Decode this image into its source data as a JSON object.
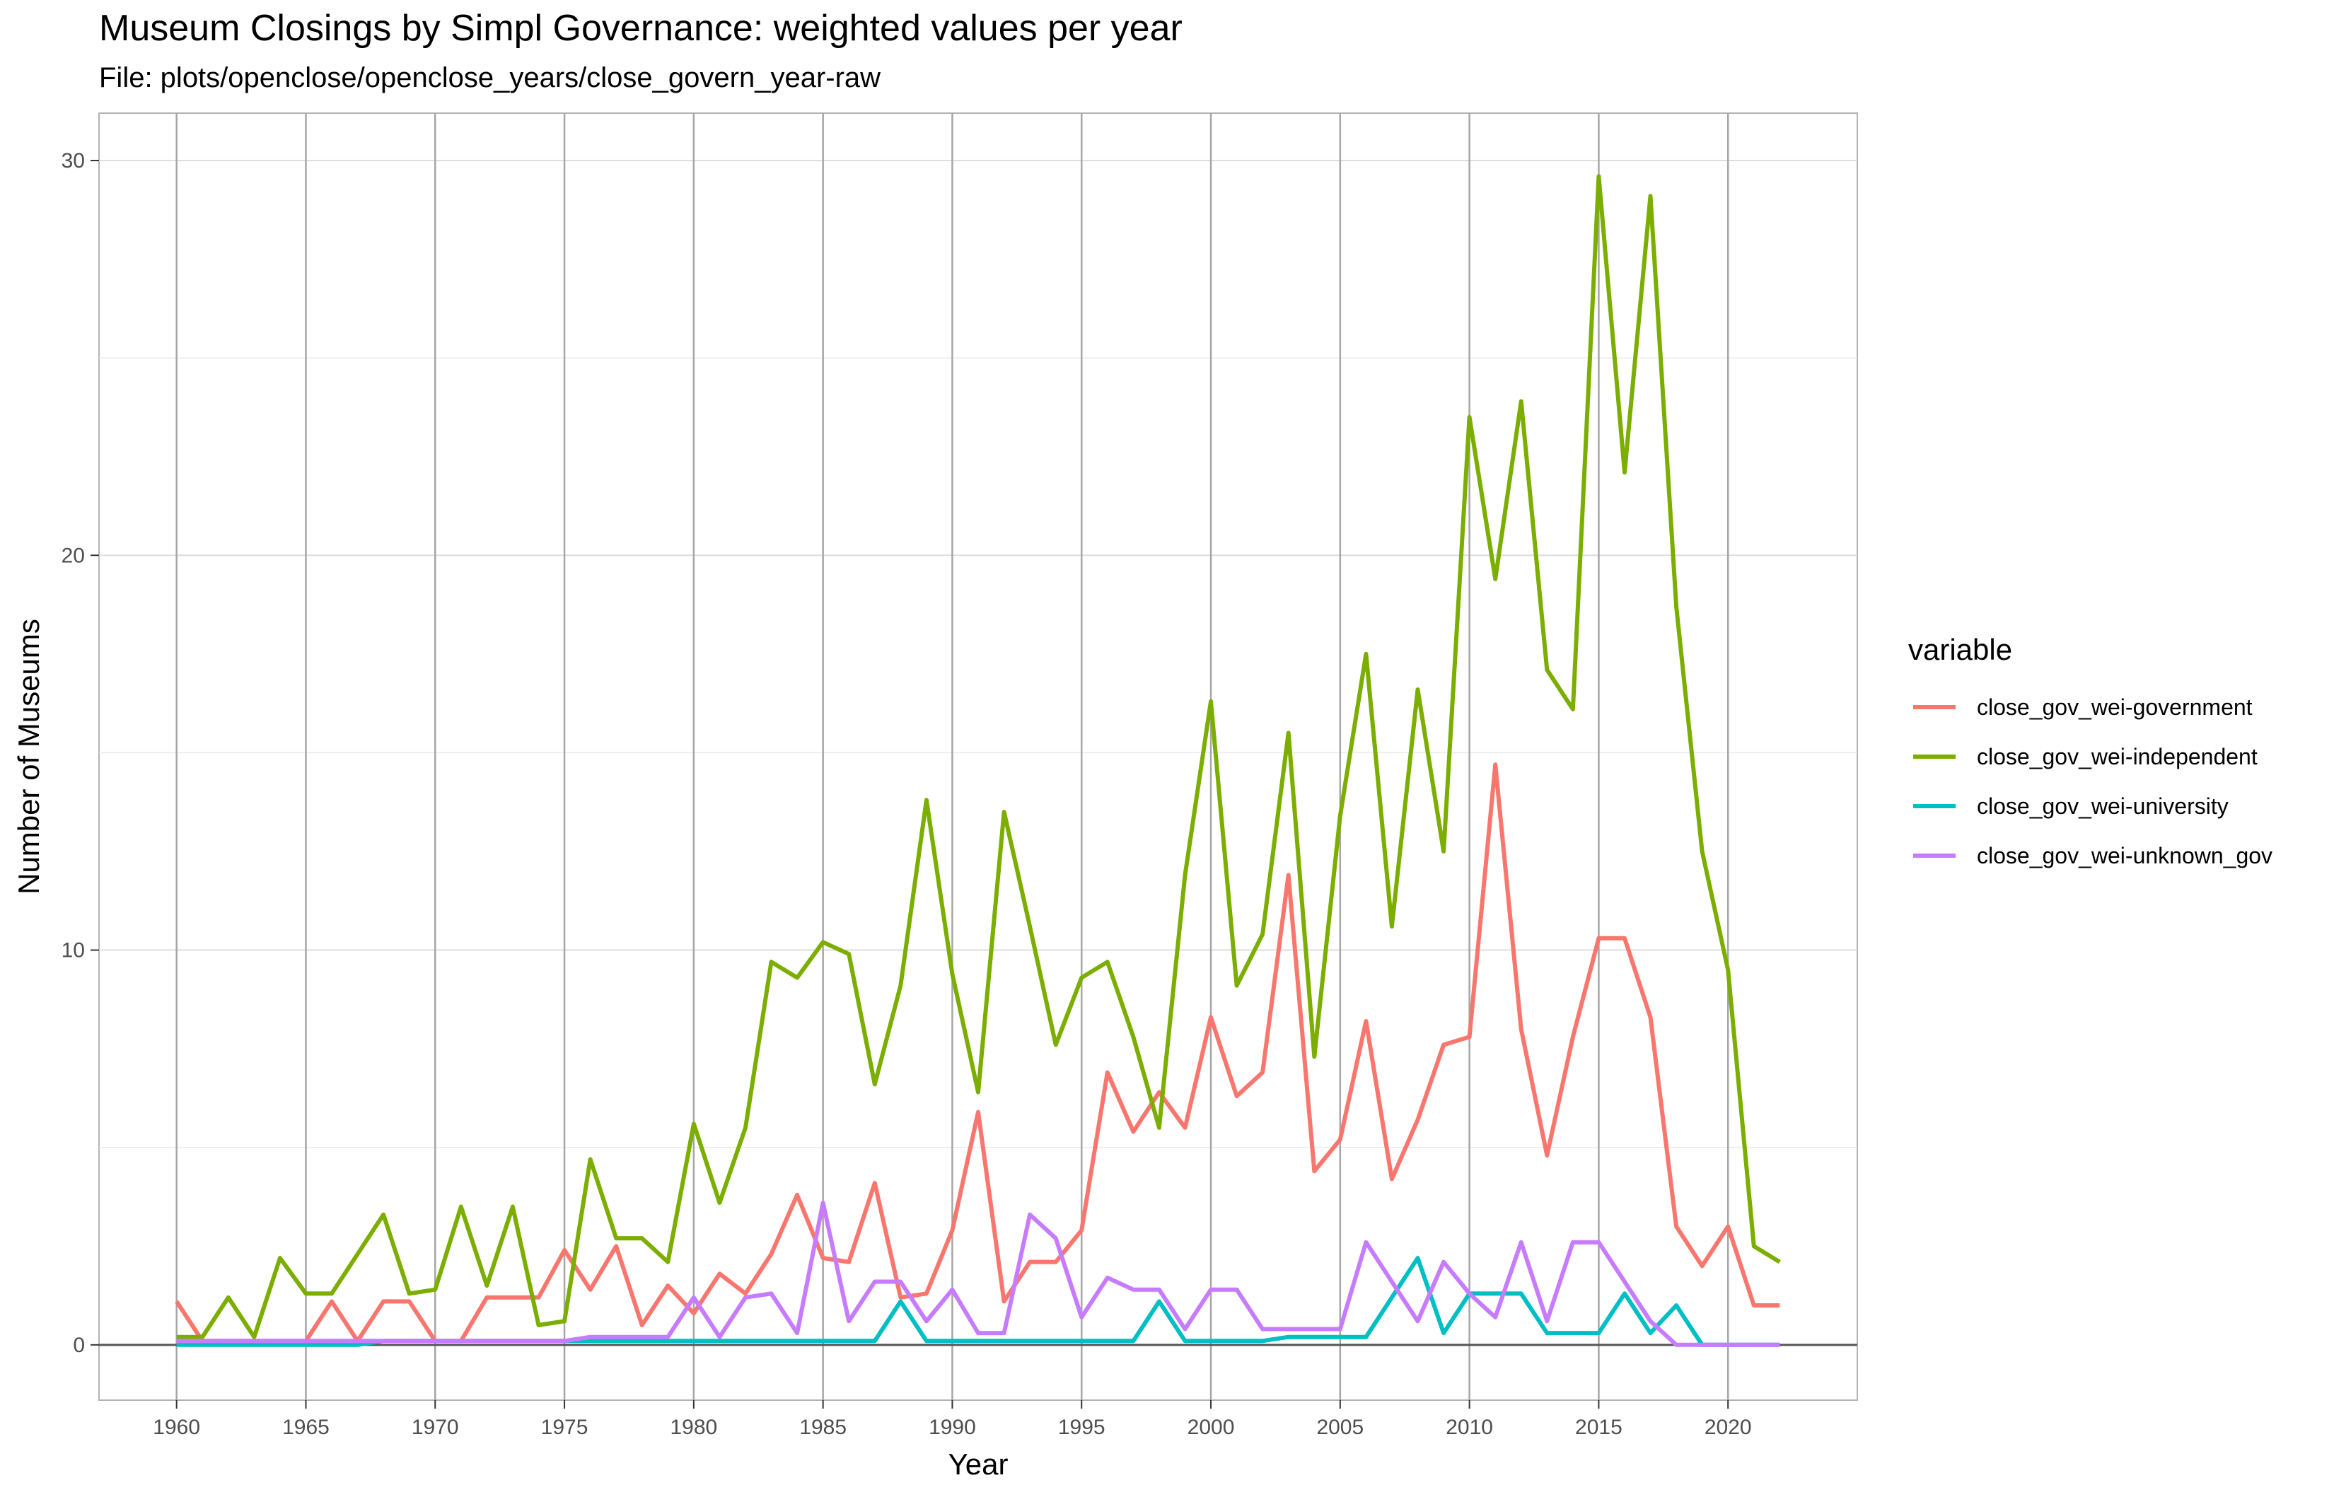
{
  "chart_data": {
    "type": "line",
    "title": "Museum Closings by Simpl Governance: weighted values per year",
    "subtitle": "File: plots/openclose/openclose_years/close_govern_year-raw",
    "xlabel": "Year",
    "ylabel": "Number of Museums",
    "xlim": [
      1957,
      2025
    ],
    "ylim": [
      -1.4,
      31.2
    ],
    "x_ticks": [
      1960,
      1965,
      1970,
      1975,
      1980,
      1985,
      1990,
      1995,
      2000,
      2005,
      2010,
      2015,
      2020
    ],
    "y_ticks": [
      0,
      10,
      20,
      30
    ],
    "grid": true,
    "legend_title": "variable",
    "legend_position": "right",
    "x": [
      1960,
      1961,
      1962,
      1963,
      1964,
      1965,
      1966,
      1967,
      1968,
      1969,
      1970,
      1971,
      1972,
      1973,
      1974,
      1975,
      1976,
      1977,
      1978,
      1979,
      1980,
      1981,
      1982,
      1983,
      1984,
      1985,
      1986,
      1987,
      1988,
      1989,
      1990,
      1991,
      1992,
      1993,
      1994,
      1995,
      1996,
      1997,
      1998,
      1999,
      2000,
      2001,
      2002,
      2003,
      2004,
      2005,
      2006,
      2007,
      2008,
      2009,
      2010,
      2011,
      2012,
      2013,
      2014,
      2015,
      2016,
      2017,
      2018,
      2019,
      2020,
      2021,
      2022
    ],
    "series": [
      {
        "name": "close_gov_wei-government",
        "color": "#F8766D",
        "values": [
          1.1,
          0.1,
          0.1,
          0.1,
          0.1,
          0.1,
          1.1,
          0.1,
          1.1,
          1.1,
          0.1,
          0.1,
          1.2,
          1.2,
          1.2,
          2.4,
          1.4,
          2.5,
          0.5,
          1.5,
          0.8,
          1.8,
          1.3,
          2.3,
          3.8,
          2.2,
          2.1,
          4.1,
          1.2,
          1.3,
          2.9,
          5.9,
          1.1,
          2.1,
          2.1,
          2.9,
          6.9,
          5.4,
          6.4,
          5.5,
          8.3,
          6.3,
          6.9,
          11.9,
          4.4,
          5.2,
          8.2,
          4.2,
          5.7,
          7.6,
          7.8,
          14.7,
          8.0,
          4.8,
          7.8,
          10.3,
          10.3,
          8.3,
          3.0,
          2.0,
          3.0,
          1.0,
          1.0
        ]
      },
      {
        "name": "close_gov_wei-independent",
        "color": "#7CAE00",
        "values": [
          0.2,
          0.2,
          1.2,
          0.2,
          2.2,
          1.3,
          1.3,
          2.3,
          3.3,
          1.3,
          1.4,
          3.5,
          1.5,
          3.5,
          0.5,
          0.6,
          4.7,
          2.7,
          2.7,
          2.1,
          5.6,
          3.6,
          5.5,
          9.7,
          9.3,
          10.2,
          9.9,
          6.6,
          9.1,
          13.8,
          9.4,
          6.4,
          13.5,
          10.6,
          7.6,
          9.3,
          9.7,
          7.8,
          5.5,
          11.9,
          16.3,
          9.1,
          10.4,
          15.5,
          7.3,
          13.4,
          17.5,
          10.6,
          16.6,
          12.5,
          23.5,
          19.4,
          23.9,
          17.1,
          16.1,
          29.6,
          22.1,
          29.1,
          18.7,
          12.5,
          9.5,
          2.5,
          2.1
        ]
      },
      {
        "name": "close_gov_wei-university",
        "color": "#00BFC4",
        "values": [
          0,
          0,
          0,
          0,
          0,
          0,
          0,
          0,
          0.1,
          0.1,
          0.1,
          0.1,
          0.1,
          0.1,
          0.1,
          0.1,
          0.1,
          0.1,
          0.1,
          0.1,
          0.1,
          0.1,
          0.1,
          0.1,
          0.1,
          0.1,
          0.1,
          0.1,
          1.1,
          0.1,
          0.1,
          0.1,
          0.1,
          0.1,
          0.1,
          0.1,
          0.1,
          0.1,
          1.1,
          0.1,
          0.1,
          0.1,
          0.1,
          0.2,
          0.2,
          0.2,
          0.2,
          1.2,
          2.2,
          0.3,
          1.3,
          1.3,
          1.3,
          0.3,
          0.3,
          0.3,
          1.3,
          0.3,
          1.0,
          0,
          0,
          0,
          0
        ]
      },
      {
        "name": "close_gov_wei-unknown_gov",
        "color": "#C77CFF",
        "values": [
          0.1,
          0.1,
          0.1,
          0.1,
          0.1,
          0.1,
          0.1,
          0.1,
          0.1,
          0.1,
          0.1,
          0.1,
          0.1,
          0.1,
          0.1,
          0.1,
          0.2,
          0.2,
          0.2,
          0.2,
          1.2,
          0.2,
          1.2,
          1.3,
          0.3,
          3.6,
          0.6,
          1.6,
          1.6,
          0.6,
          1.4,
          0.3,
          0.3,
          3.3,
          2.7,
          0.7,
          1.7,
          1.4,
          1.4,
          0.4,
          1.4,
          1.4,
          0.4,
          0.4,
          0.4,
          0.4,
          2.6,
          1.6,
          0.6,
          2.1,
          1.3,
          0.7,
          2.6,
          0.6,
          2.6,
          2.6,
          1.6,
          0.6,
          0,
          0,
          0,
          0,
          0
        ]
      }
    ]
  }
}
